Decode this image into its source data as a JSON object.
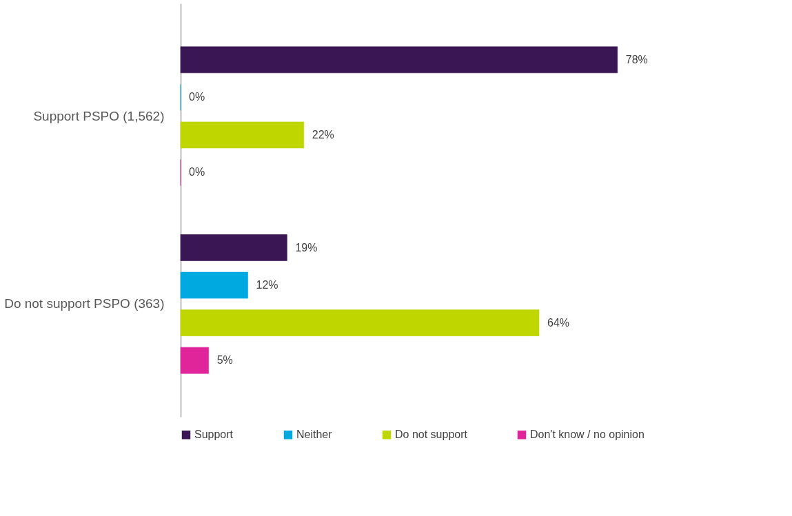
{
  "chart_data": {
    "type": "bar",
    "orientation": "horizontal",
    "categories": [
      "Support PSPO (1,562)",
      "Do not support PSPO (363)"
    ],
    "legend": "bottom",
    "series": [
      {
        "name": "Support",
        "color": "#3b1654",
        "values": [
          78,
          19
        ],
        "value_labels": [
          "78%",
          "19%"
        ]
      },
      {
        "name": "Neither",
        "color": "#00a9e0",
        "values": [
          0,
          12
        ],
        "value_labels": [
          "0%",
          "12%"
        ]
      },
      {
        "name": "Do not support",
        "color": "#bfd600",
        "values": [
          22,
          64
        ],
        "value_labels": [
          "22%",
          "64%"
        ]
      },
      {
        "name": "Don't know / no opinion",
        "color": "#e0259b",
        "values": [
          0,
          5
        ],
        "value_labels": [
          "0%",
          "5%"
        ]
      }
    ]
  }
}
